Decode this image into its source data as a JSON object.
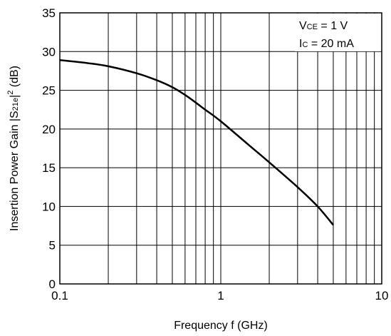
{
  "chart_data": {
    "type": "line",
    "title": "",
    "xlabel": "Frequency  f (GHz)",
    "ylabel_main": "Insertion Power Gain  |S",
    "ylabel_sub": "21e",
    "ylabel_sup": "2",
    "ylabel_end": " (dB)",
    "x_scale": "log",
    "xlim": [
      0.1,
      10
    ],
    "ylim": [
      0,
      35
    ],
    "x_ticks": [
      0.1,
      1,
      10
    ],
    "x_tick_labels": [
      "0.1",
      "1",
      "10"
    ],
    "y_ticks": [
      0,
      5,
      10,
      15,
      20,
      25,
      30,
      35
    ],
    "y_tick_labels": [
      "0",
      "5",
      "10",
      "15",
      "20",
      "25",
      "30",
      "35"
    ],
    "grid": true,
    "annotation": {
      "line1_main": "V",
      "line1_sub": "CE",
      "line1_rest": " = 1 V",
      "line2_main": "I",
      "line2_sub": "C",
      "line2_rest": " = 20 mA",
      "placement": "top-right"
    },
    "series": [
      {
        "x": [
          0.1,
          0.15,
          0.2,
          0.3,
          0.4,
          0.5,
          0.6,
          0.7,
          0.8,
          1.0,
          1.5,
          2.0,
          3.0,
          4.0,
          5.0
        ],
        "y": [
          28.9,
          28.5,
          28.1,
          27.2,
          26.3,
          25.4,
          24.4,
          23.4,
          22.5,
          21.0,
          17.9,
          15.7,
          12.5,
          10.0,
          7.6
        ]
      }
    ]
  }
}
